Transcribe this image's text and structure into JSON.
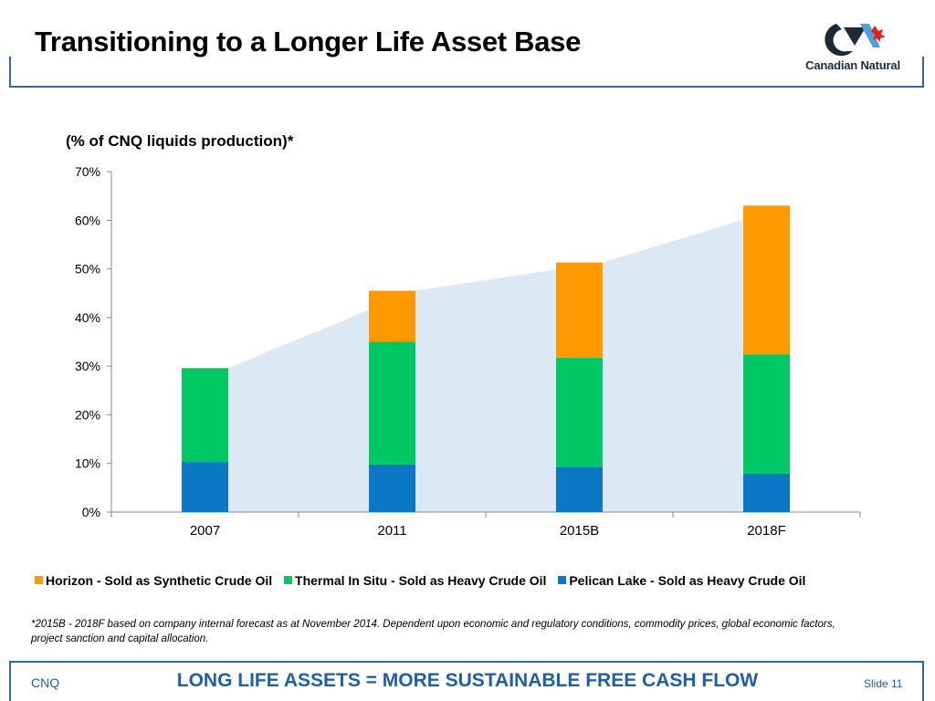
{
  "slide": {
    "title": "Transitioning to a Longer Life Asset Base",
    "logo_text": "Canadian Natural",
    "footnote": "*2015B - 2018F based on company internal forecast as at November 2014. Dependent upon economic and regulatory conditions, commodity prices, global economic factors, project sanction and capital allocation.",
    "footer_left": "CNQ",
    "footer_center": "LONG LIFE ASSETS = MORE SUSTAINABLE FREE CASH FLOW",
    "footer_right": "Slide 11"
  },
  "colors": {
    "pelican": "#0a78c4",
    "thermal": "#00c864",
    "horizon": "#ff9900",
    "area": "#dce8f4",
    "brand": "#1f5fa8"
  },
  "chart_data": {
    "type": "bar",
    "stacked": true,
    "title": "(% of CNQ liquids production)*",
    "categories": [
      "2007",
      "2011",
      "2015B",
      "2018F"
    ],
    "ylim": [
      0,
      70
    ],
    "yticks": [
      "0%",
      "10%",
      "20%",
      "30%",
      "40%",
      "50%",
      "60%",
      "70%"
    ],
    "legend_position": "bottom",
    "grid": false,
    "background_area": "shaded area tracing bar totals",
    "series": [
      {
        "name": "Pelican Lake - Sold as Heavy Crude Oil",
        "color": "#0a78c4",
        "values": [
          10.3,
          9.8,
          9.2,
          7.9
        ]
      },
      {
        "name": "Thermal In Situ - Sold as Heavy Crude Oil",
        "color": "#00c864",
        "values": [
          19.3,
          25.2,
          22.5,
          24.5
        ]
      },
      {
        "name": "Horizon - Sold as Synthetic Crude Oil",
        "color": "#ff9900",
        "values": [
          0,
          10.5,
          19.6,
          30.6
        ]
      }
    ],
    "legend_order": [
      2,
      1,
      0
    ]
  }
}
